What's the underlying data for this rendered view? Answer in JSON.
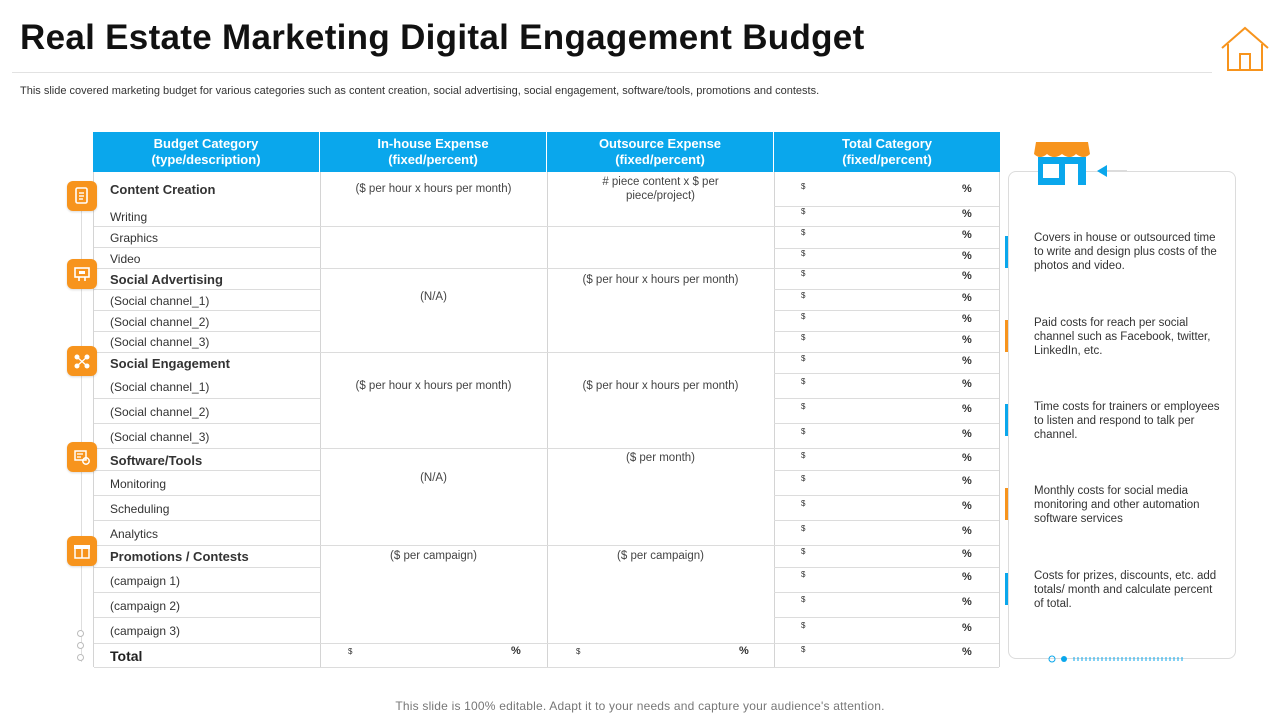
{
  "title": "Real Estate Marketing Digital Engagement Budget",
  "subtitle": "This slide covered marketing budget for various categories such as content creation, social advertising, social engagement, software/tools, promotions and contests.",
  "footer": "This slide is 100% editable. Adapt it to your needs and capture your audience's attention.",
  "colors": {
    "header_blue": "#0aa7ec",
    "accent_orange": "#f7941d"
  },
  "table": {
    "headers": [
      {
        "line1": "Budget Category",
        "line2": "(type/description)"
      },
      {
        "line1": "In-house Expense",
        "line2": "(fixed/percent)"
      },
      {
        "line1": "Outsource Expense",
        "line2": "(fixed/percent)"
      },
      {
        "line1": "Total Category",
        "line2": "(fixed/percent)"
      }
    ],
    "content_creation": {
      "label": "Content Creation",
      "items": [
        "Writing",
        "Graphics",
        "Video"
      ],
      "inhouse": "($ per hour x   hours per month)",
      "outsource_1": "# piece content x $ per",
      "outsource_2": "piece/project)"
    },
    "social_advertising": {
      "label": "Social Advertising",
      "items": [
        "(Social channel_1)",
        "(Social channel_2)",
        "(Social channel_3)"
      ],
      "inhouse": "(N/A)",
      "outsource": "($ per hour x   hours per month)"
    },
    "social_engagement": {
      "label": "Social Engagement",
      "items": [
        "(Social channel_1)",
        "(Social channel_2)",
        "(Social channel_3)"
      ],
      "inhouse": "($ per hour x   hours per month)",
      "outsource": "($ per hour x   hours per month)"
    },
    "software_tools": {
      "label": "Software/Tools",
      "items": [
        "Monitoring",
        "Scheduling",
        "Analytics"
      ],
      "inhouse": "(N/A)",
      "outsource": "($ per month)"
    },
    "promotions": {
      "label": "Promotions  / Contests",
      "items": [
        "(campaign 1)",
        "(campaign 2)",
        "(campaign 3)"
      ],
      "inhouse": "($ per campaign)",
      "outsource": "($ per campaign)"
    },
    "total_label": "Total",
    "dollar": "$",
    "percent": "%"
  },
  "timeline_icons": [
    "document-icon",
    "billboard-icon",
    "share-network-icon",
    "tools-settings-icon",
    "gift-promo-icon"
  ],
  "notes": [
    "Covers in house or outsourced time to write and design plus costs of the photos and video.",
    "Paid costs for reach per social channel such as Facebook, twitter, LinkedIn, etc.",
    "Time costs for trainers or employees to listen and respond to talk per channel.",
    "Monthly costs for social media monitoring and other automation software services",
    "Costs for prizes, discounts, etc. add totals/ month and calculate percent of total."
  ]
}
